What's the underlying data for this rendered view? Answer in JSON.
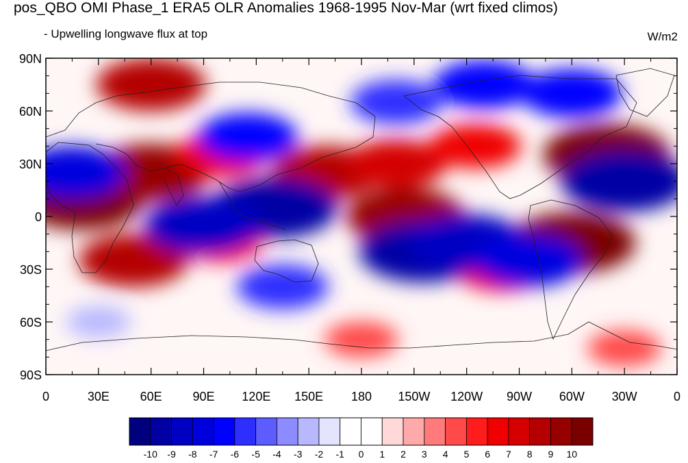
{
  "title": "pos_QBO OMI Phase_1 ERA5 OLR Anomalies 1968-1995 Nov-Mar (wrt fixed climos)",
  "subtitle": "- Upwelling longwave flux at top",
  "units": "W/m2",
  "map": {
    "projection": "cylindrical equidistant",
    "lon_range": [
      0,
      360
    ],
    "lat_range": [
      -90,
      90
    ],
    "x_tick_labels": [
      "0",
      "30E",
      "60E",
      "90E",
      "120E",
      "150E",
      "180",
      "150W",
      "120W",
      "90W",
      "60W",
      "30W",
      "0"
    ],
    "y_tick_labels": [
      "90N",
      "60N",
      "30N",
      "0",
      "30S",
      "60S",
      "90S"
    ],
    "field": "OLR anomaly"
  },
  "colorbar": {
    "labels": [
      "-10",
      "-9",
      "-8",
      "-7",
      "-6",
      "-5",
      "-4",
      "-3",
      "-2",
      "-1",
      "0",
      "1",
      "2",
      "3",
      "4",
      "5",
      "6",
      "7",
      "8",
      "9",
      "10"
    ],
    "colors": [
      "#00007f",
      "#0000a5",
      "#0000c3",
      "#0000df",
      "#0000ff",
      "#2e2eff",
      "#5c5cff",
      "#8c8cff",
      "#b8b8ff",
      "#e4e4ff",
      "#ffffff",
      "#ffffff",
      "#ffd8d8",
      "#ffaaaa",
      "#ff7a7a",
      "#ff4a4a",
      "#ff1c1c",
      "#f00000",
      "#d40000",
      "#b40000",
      "#960000",
      "#7a0000"
    ]
  },
  "anomalies": [
    {
      "lon": 60,
      "lat": 75,
      "value": 8
    },
    {
      "lon": 20,
      "lat": 10,
      "value": 10
    },
    {
      "lon": 60,
      "lat": 25,
      "value": 9
    },
    {
      "lon": 100,
      "lat": 35,
      "value": 6
    },
    {
      "lon": 160,
      "lat": 25,
      "value": 8
    },
    {
      "lon": 205,
      "lat": 0,
      "value": 9
    },
    {
      "lon": 200,
      "lat": 30,
      "value": 7
    },
    {
      "lon": 245,
      "lat": 40,
      "value": 6
    },
    {
      "lon": 320,
      "lat": 35,
      "value": 10
    },
    {
      "lon": 300,
      "lat": -15,
      "value": 10
    },
    {
      "lon": 50,
      "lat": -25,
      "value": 8
    },
    {
      "lon": 100,
      "lat": -15,
      "value": 5
    },
    {
      "lon": 260,
      "lat": -30,
      "value": 6
    },
    {
      "lon": 180,
      "lat": -70,
      "value": 4
    },
    {
      "lon": 330,
      "lat": -75,
      "value": 4
    },
    {
      "lon": 130,
      "lat": 5,
      "value": -10
    },
    {
      "lon": 90,
      "lat": -5,
      "value": -9
    },
    {
      "lon": 215,
      "lat": -20,
      "value": -10
    },
    {
      "lon": 240,
      "lat": -15,
      "value": -9
    },
    {
      "lon": 330,
      "lat": 20,
      "value": -10
    },
    {
      "lon": 15,
      "lat": 25,
      "value": -8
    },
    {
      "lon": 115,
      "lat": 45,
      "value": -7
    },
    {
      "lon": 250,
      "lat": 75,
      "value": -7
    },
    {
      "lon": 300,
      "lat": 70,
      "value": -7
    },
    {
      "lon": 200,
      "lat": 65,
      "value": -6
    },
    {
      "lon": 135,
      "lat": -40,
      "value": -6
    },
    {
      "lon": 275,
      "lat": -25,
      "value": -8
    },
    {
      "lon": 30,
      "lat": -60,
      "value": -3
    }
  ]
}
